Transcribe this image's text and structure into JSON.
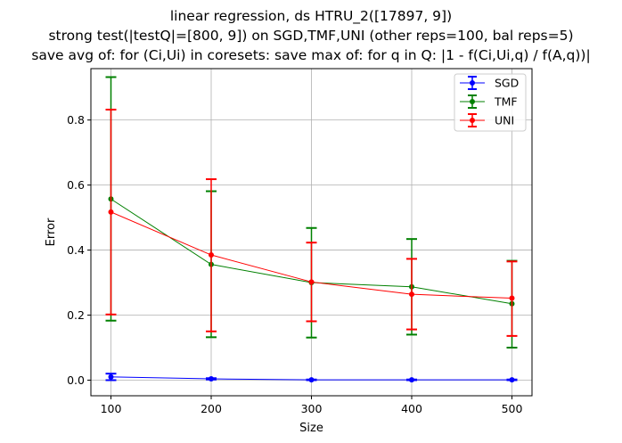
{
  "chart_data": {
    "type": "line",
    "title_lines": [
      "linear regression, ds HTRU_2([17897, 9])",
      "strong test(|testQ|=[800, 9]) on SGD,TMF,UNI (other reps=100, bal reps=5)",
      "save avg of: for (Ci,Ui) in coresets: save max of: for q in Q: |1 - f(Ci,Ui,q) / f(A,q))|"
    ],
    "xlabel": "Size",
    "ylabel": "Error",
    "x": [
      100,
      200,
      300,
      400,
      500
    ],
    "xlim": [
      80,
      520
    ],
    "ylim": [
      -0.048,
      0.958
    ],
    "xticks": [
      100,
      200,
      300,
      400,
      500
    ],
    "yticks": [
      0.0,
      0.2,
      0.4,
      0.6,
      0.8
    ],
    "ytick_labels": [
      "0.0",
      "0.2",
      "0.4",
      "0.6",
      "0.8"
    ],
    "grid": true,
    "legend_position": "top-right",
    "series": [
      {
        "name": "SGD",
        "color": "#0000ff",
        "values": [
          0.01,
          0.004,
          0.001,
          0.001,
          0.001
        ],
        "err_low": [
          0.0,
          0.002,
          0.0,
          0.0,
          0.0
        ],
        "err_high": [
          0.02,
          0.006,
          0.002,
          0.002,
          0.002
        ]
      },
      {
        "name": "TMF",
        "color": "#008000",
        "values": [
          0.557,
          0.356,
          0.3,
          0.287,
          0.235
        ],
        "err_low": [
          0.183,
          0.132,
          0.131,
          0.14,
          0.1
        ],
        "err_high": [
          0.932,
          0.581,
          0.468,
          0.434,
          0.367
        ]
      },
      {
        "name": "UNI",
        "color": "#ff0000",
        "values": [
          0.517,
          0.385,
          0.302,
          0.264,
          0.252
        ],
        "err_low": [
          0.202,
          0.15,
          0.181,
          0.156,
          0.136
        ],
        "err_high": [
          0.832,
          0.618,
          0.423,
          0.373,
          0.365
        ]
      }
    ]
  }
}
